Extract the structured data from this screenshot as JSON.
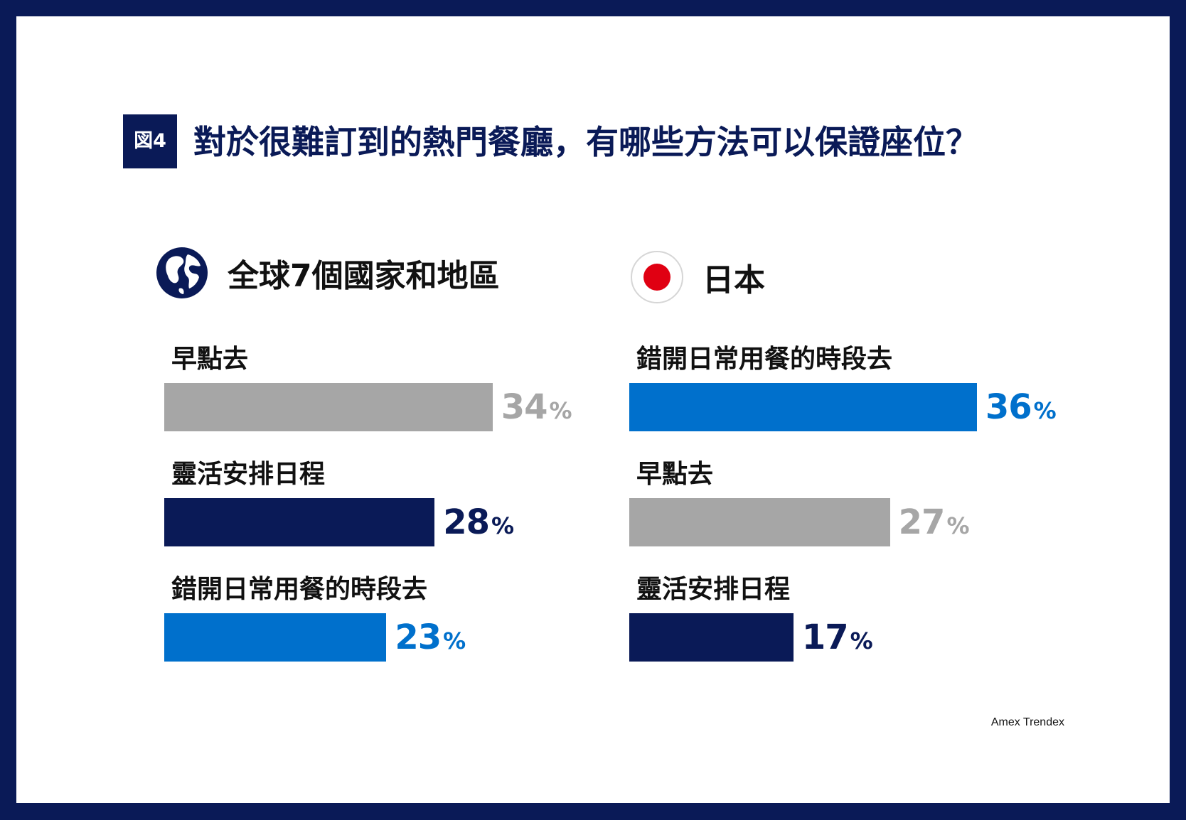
{
  "header": {
    "figure_label": "図4",
    "title": "對於很難訂到的熱門餐廳，有哪些方法可以保證座位？"
  },
  "source": "Amex Trendex",
  "colors": {
    "navy": "#0a1a57",
    "blue": "#0070cc",
    "gray": "#a6a6a6"
  },
  "chart_data": [
    {
      "type": "bar",
      "title": "全球7個國家和地區",
      "icon": "globe-icon",
      "categories": [
        "早點去",
        "靈活安排日程",
        "錯開日常用餐的時段去"
      ],
      "values": [
        34,
        28,
        23
      ],
      "unit": "%",
      "colors": [
        "#a6a6a6",
        "#0a1a57",
        "#0070cc"
      ],
      "labels": [
        {
          "category": "早點去",
          "num": "34",
          "sym": "%"
        },
        {
          "category": "靈活安排日程",
          "num": "28",
          "sym": "%"
        },
        {
          "category": "錯開日常用餐的時段去",
          "num": "23",
          "sym": "%"
        }
      ]
    },
    {
      "type": "bar",
      "title": "日本",
      "icon": "japan-flag-icon",
      "categories": [
        "錯開日常用餐的時段去",
        "早點去",
        "靈活安排日程"
      ],
      "values": [
        36,
        27,
        17
      ],
      "unit": "%",
      "colors": [
        "#0070cc",
        "#a6a6a6",
        "#0a1a57"
      ],
      "labels": [
        {
          "category": "錯開日常用餐的時段去",
          "num": "36",
          "sym": "%"
        },
        {
          "category": "早點去",
          "num": "27",
          "sym": "%"
        },
        {
          "category": "靈活安排日程",
          "num": "17",
          "sym": "%"
        }
      ]
    }
  ]
}
